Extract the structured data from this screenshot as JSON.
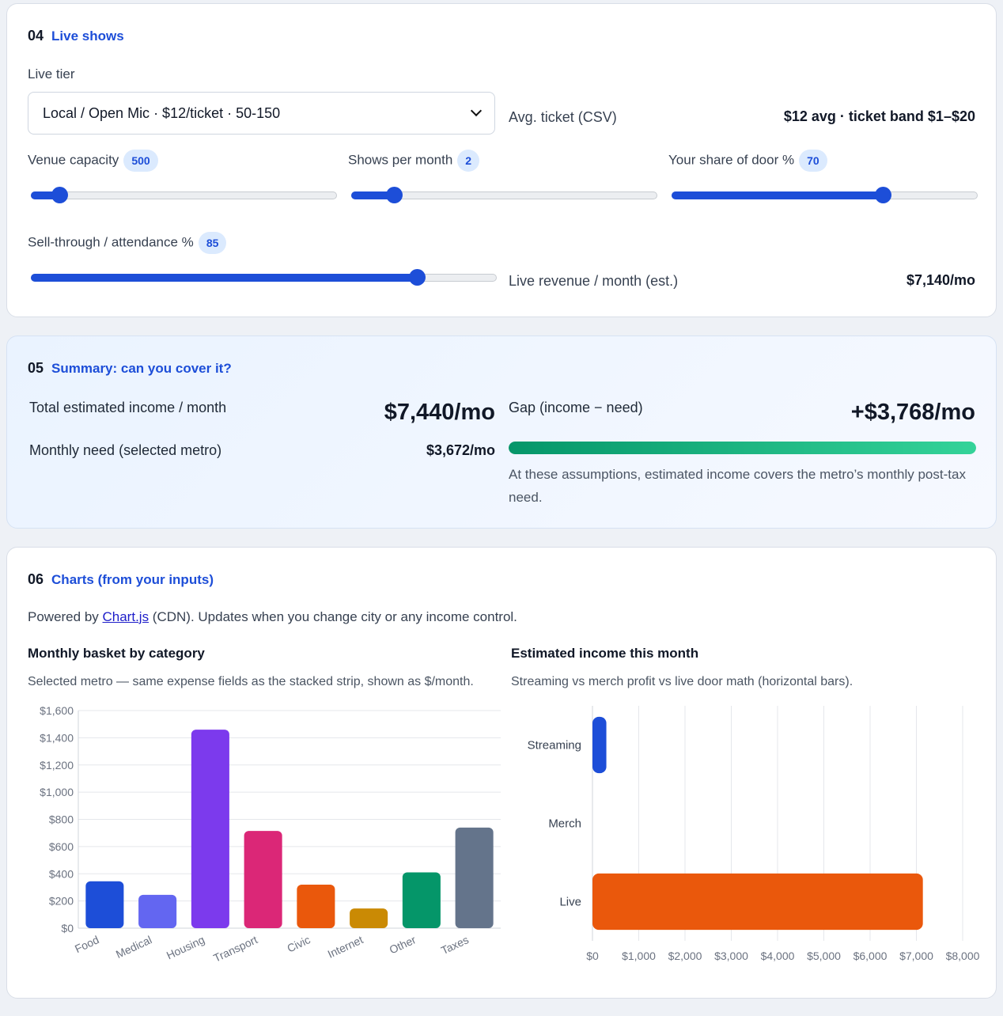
{
  "live": {
    "num": "04",
    "title": "Live shows",
    "tier_label": "Live tier",
    "tier_value": "Local / Open Mic · $12/ticket · 50-150",
    "avg_ticket_label": "Avg. ticket (CSV)",
    "avg_ticket_value": "$12 avg · ticket band $1–$20",
    "capacity_label": "Venue capacity",
    "capacity_value": "500",
    "capacity_fraction": 0.07,
    "shows_label": "Shows per month",
    "shows_value": "2",
    "shows_fraction": 0.12,
    "share_label": "Your share of door %",
    "share_value": "70",
    "share_fraction": 0.7,
    "sell_label": "Sell-through / attendance %",
    "sell_value": "85",
    "sell_fraction": 0.84,
    "revenue_label": "Live revenue / month (est.)",
    "revenue_value": "$7,140/mo"
  },
  "summary": {
    "num": "05",
    "title": "Summary: can you cover it?",
    "income_label": "Total estimated income / month",
    "income_value": "$7,440/mo",
    "need_label": "Monthly need (selected metro)",
    "need_value": "$3,672/mo",
    "gap_label": "Gap (income − need)",
    "gap_value": "+$3,768/mo",
    "gap_fraction": 1.0,
    "note": "At these assumptions, estimated income covers the metro’s monthly post-tax need."
  },
  "charts": {
    "num": "06",
    "title": "Charts (from your inputs)",
    "powered_prefix": "Powered by ",
    "powered_link": "Chart.js",
    "powered_suffix": " (CDN). Updates when you change city or any income control.",
    "basket_title": "Monthly basket by category",
    "basket_note": "Selected metro — same expense fields as the stacked strip, shown as $/month.",
    "income_title": "Estimated income this month",
    "income_note": "Streaming vs merch profit vs live door math (horizontal bars)."
  },
  "chart_data": [
    {
      "type": "bar",
      "categories": [
        "Food",
        "Medical",
        "Housing",
        "Transport",
        "Civic",
        "Internet",
        "Other",
        "Taxes"
      ],
      "values": [
        345,
        245,
        1460,
        715,
        320,
        145,
        410,
        740
      ],
      "colors": [
        "#1d4ed8",
        "#6366f1",
        "#7c3aed",
        "#db2777",
        "#ea580c",
        "#ca8a04",
        "#059669",
        "#64748b"
      ],
      "ylim": [
        0,
        1600
      ],
      "yticks": [
        "$0",
        "$200",
        "$400",
        "$600",
        "$800",
        "$1,000",
        "$1,200",
        "$1,400",
        "$1,600"
      ],
      "grid": true
    },
    {
      "type": "bar",
      "orientation": "horizontal",
      "categories": [
        "Streaming",
        "Merch",
        "Live"
      ],
      "values": [
        300,
        0,
        7140
      ],
      "colors": [
        "#1d4ed8",
        "#059669",
        "#ea580c"
      ],
      "xlim": [
        0,
        8000
      ],
      "xticks": [
        "$0",
        "$1,000",
        "$2,000",
        "$3,000",
        "$4,000",
        "$5,000",
        "$6,000",
        "$7,000",
        "$8,000"
      ],
      "grid": true
    }
  ]
}
